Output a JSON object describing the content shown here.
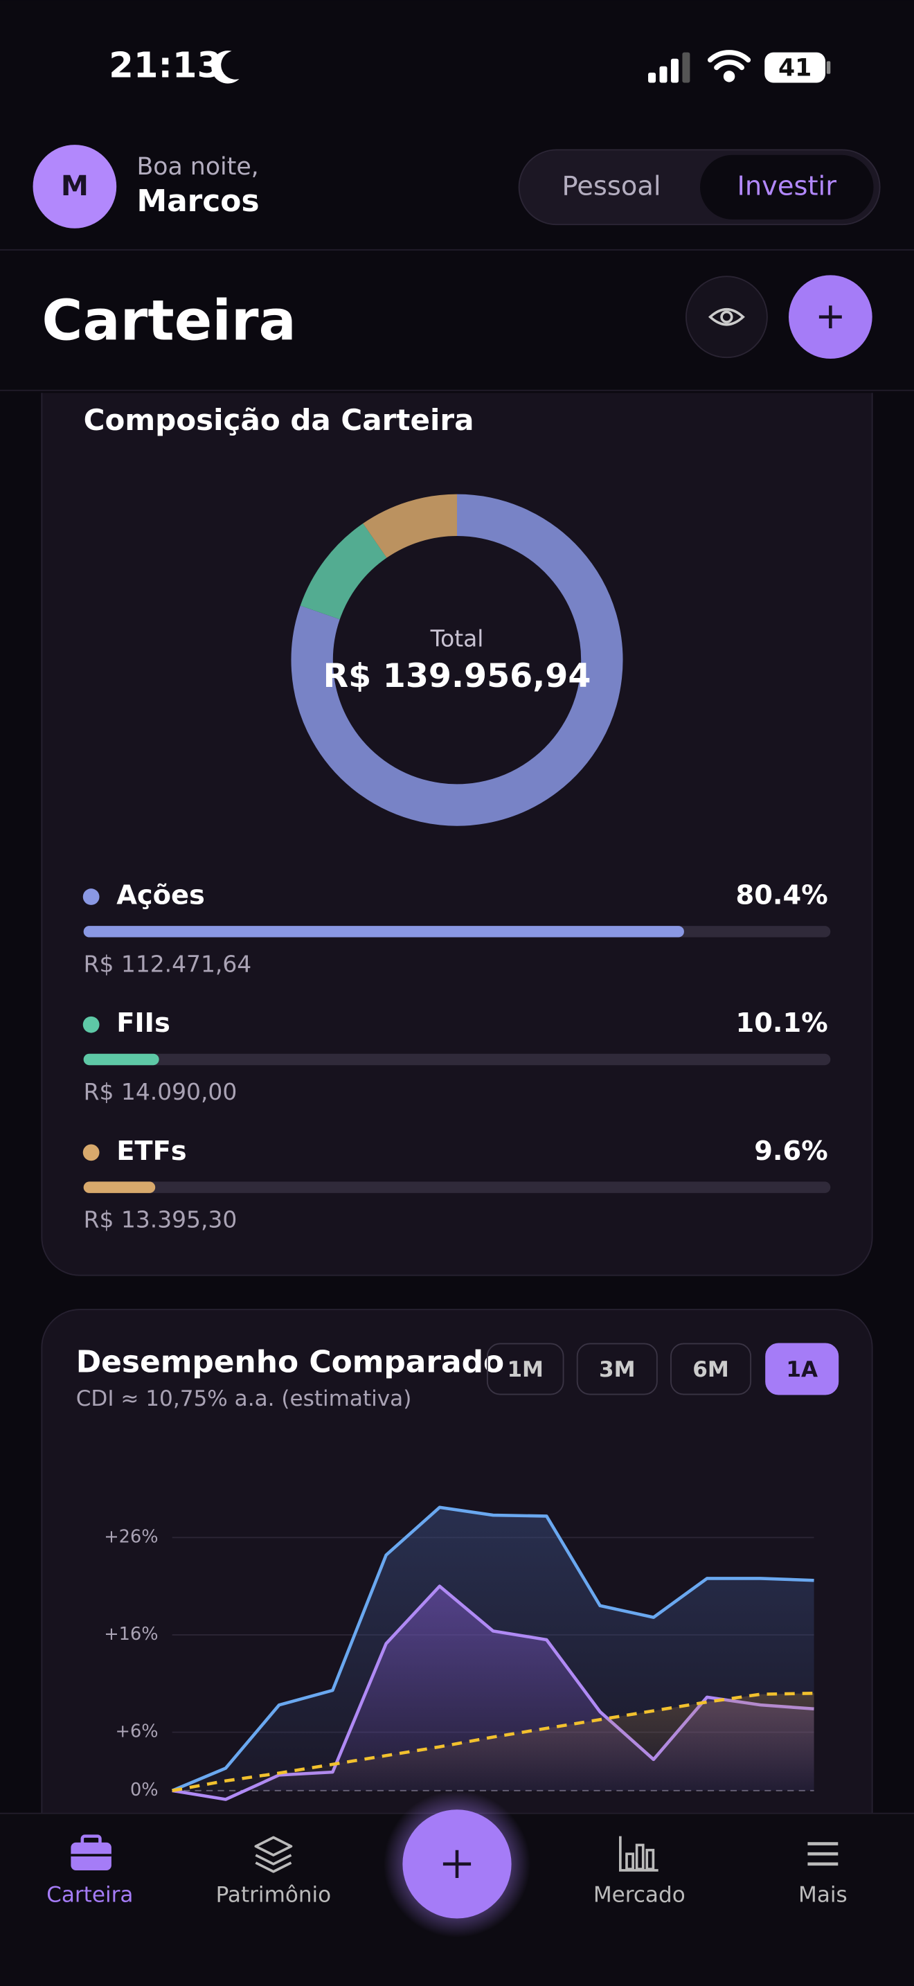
{
  "status_bar": {
    "time": "21:13",
    "battery": "41"
  },
  "header": {
    "avatar": "M",
    "greeting": "Boa noite,",
    "name": "Marcos",
    "tabs": [
      "Pessoal",
      "Investir"
    ],
    "active_tab": 1
  },
  "page_title": "Carteira",
  "chart_data": [
    {
      "type": "pie",
      "title": "Composição da Carteira",
      "center_label": "Total",
      "center_value": "R$ 139.956,94",
      "categories": [
        "Ações",
        "FIIs",
        "ETFs"
      ],
      "values": [
        80.4,
        10.1,
        9.6
      ],
      "value_labels": [
        "80.4%",
        "10.1%",
        "9.6%"
      ],
      "amounts": [
        "R$ 112.471,64",
        "R$ 14.090,00",
        "R$ 13.395,30"
      ],
      "colors": [
        "#8a98e4",
        "#5ec8a6",
        "#d8a96c"
      ]
    },
    {
      "type": "line",
      "title": "Desempenho Comparado",
      "subtitle": "CDI ≈ 10,75% a.a. (estimativa)",
      "ranges": [
        "1M",
        "3M",
        "6M",
        "1A"
      ],
      "active_range": 3,
      "ylim": [
        -2,
        32
      ],
      "yticks": [
        {
          "value": 0,
          "label": "0%"
        },
        {
          "value": 6,
          "label": "+6%"
        },
        {
          "value": 16,
          "label": "+16%"
        },
        {
          "value": 26,
          "label": "+26%"
        }
      ],
      "grid": true,
      "series": [
        {
          "color": "#6aa8f0",
          "values": [
            0,
            2.3,
            8.8,
            10.3,
            24.2,
            29.1,
            28.3,
            28.2,
            19.0,
            17.8,
            21.8,
            21.8,
            21.6
          ]
        },
        {
          "color": "#b08af5",
          "values": [
            0,
            -0.9,
            1.6,
            1.9,
            15.1,
            21.0,
            16.4,
            15.5,
            8.1,
            3.2,
            9.6,
            8.8,
            8.4
          ]
        },
        {
          "color": "#f2c12e",
          "dashed": true,
          "values": [
            0,
            1.0,
            1.8,
            2.7,
            3.6,
            4.5,
            5.5,
            6.4,
            7.3,
            8.2,
            9.1,
            9.9,
            10.0
          ]
        }
      ]
    }
  ],
  "nav": {
    "items": [
      "Carteira",
      "Patrimônio",
      "Mercado",
      "Mais"
    ],
    "active": 0
  }
}
